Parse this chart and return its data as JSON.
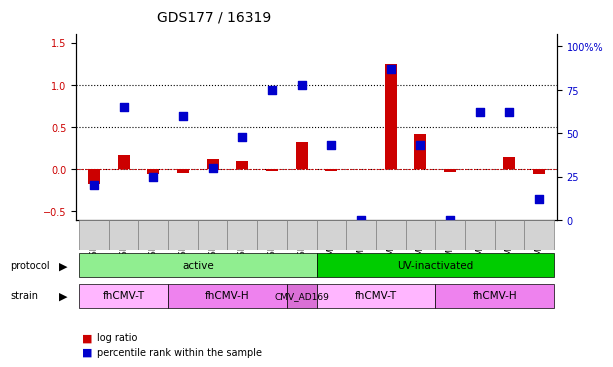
{
  "title": "GDS177 / 16319",
  "samples": [
    "GSM825",
    "GSM827",
    "GSM828",
    "GSM829",
    "GSM830",
    "GSM831",
    "GSM832",
    "GSM833",
    "GSM6822",
    "GSM6823",
    "GSM6824",
    "GSM6825",
    "GSM6818",
    "GSM6819",
    "GSM6820",
    "GSM6821"
  ],
  "log_ratio": [
    -0.17,
    0.17,
    -0.05,
    -0.04,
    0.12,
    0.1,
    -0.02,
    0.32,
    -0.02,
    0.0,
    1.25,
    0.42,
    -0.03,
    0.0,
    0.14,
    -0.05
  ],
  "percentile": [
    0.2,
    0.65,
    0.25,
    0.6,
    0.3,
    0.48,
    0.75,
    0.78,
    0.43,
    0.0,
    0.87,
    0.43,
    0.0,
    0.62,
    0.62,
    0.12
  ],
  "protocol_groups": [
    {
      "label": "active",
      "start": 0,
      "end": 7,
      "color": "#90EE90"
    },
    {
      "label": "UV-inactivated",
      "start": 8,
      "end": 15,
      "color": "#00CC00"
    }
  ],
  "strain_groups": [
    {
      "label": "fhCMV-T",
      "start": 0,
      "end": 2,
      "color": "#FFB6FF"
    },
    {
      "label": "fhCMV-H",
      "start": 3,
      "end": 6,
      "color": "#EE82EE"
    },
    {
      "label": "CMV_AD169",
      "start": 7,
      "end": 7,
      "color": "#DA70D6"
    },
    {
      "label": "fhCMV-T",
      "start": 8,
      "end": 11,
      "color": "#FFB6FF"
    },
    {
      "label": "fhCMV-H",
      "start": 12,
      "end": 15,
      "color": "#EE82EE"
    }
  ],
  "ylim_left": [
    -0.6,
    1.6
  ],
  "ylim_right": [
    0,
    107
  ],
  "yticks_left": [
    -0.5,
    0.0,
    0.5,
    1.0,
    1.5
  ],
  "yticks_right": [
    0,
    25,
    50,
    75,
    100
  ],
  "hlines": [
    0.0,
    0.5,
    1.0
  ],
  "bar_color": "#CC0000",
  "dot_color": "#0000CC",
  "bar_width": 0.4,
  "dot_size": 30,
  "xlabel_rotation": 90,
  "legend_items": [
    {
      "label": "log ratio",
      "color": "#CC0000"
    },
    {
      "label": "percentile rank within the sample",
      "color": "#0000CC"
    }
  ]
}
